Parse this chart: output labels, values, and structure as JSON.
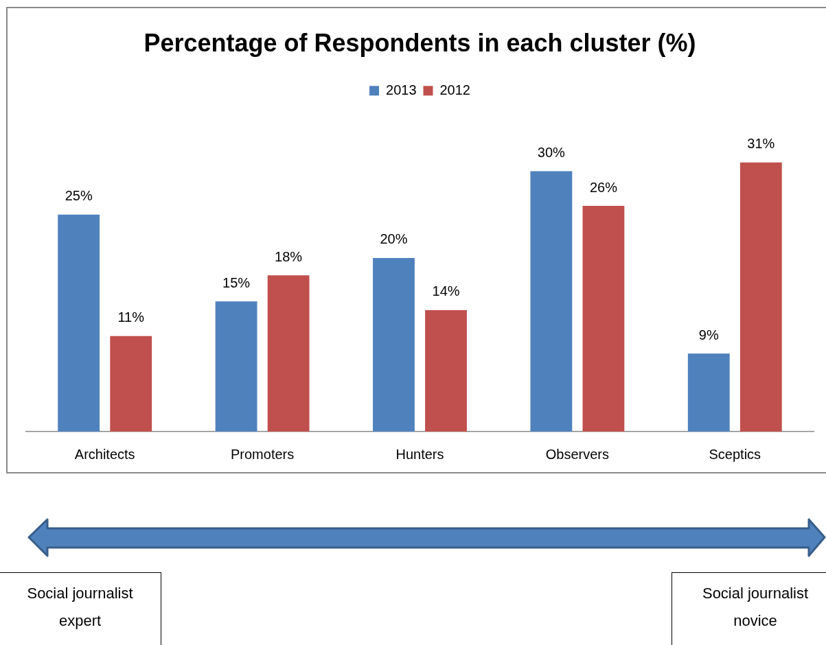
{
  "chart_data": {
    "type": "bar",
    "title": "Percentage of Respondents in each cluster (%)",
    "categories": [
      "Architects",
      "Promoters",
      "Hunters",
      "Observers",
      "Sceptics"
    ],
    "series": [
      {
        "name": "2013",
        "color": "#4f81bd",
        "values": [
          25,
          15,
          20,
          30,
          9
        ],
        "value_labels": [
          "25%",
          "15%",
          "20%",
          "30%",
          "9%"
        ]
      },
      {
        "name": "2012",
        "color": "#c0504d",
        "values": [
          11,
          18,
          14,
          26,
          31
        ],
        "value_labels": [
          "11%",
          "18%",
          "14%",
          "26%",
          "31%"
        ]
      }
    ],
    "legend": "top",
    "annotations": [
      "Social journalist expert",
      "Social journalist novice"
    ]
  }
}
